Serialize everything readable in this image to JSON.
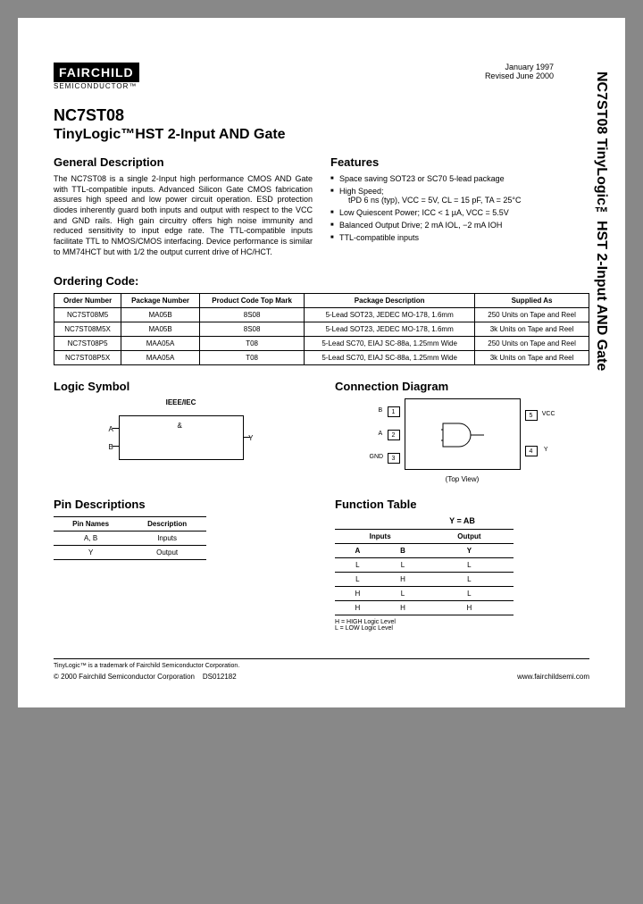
{
  "side_title": "NC7ST08 TinyLogic™HST 2-Input AND Gate",
  "logo": {
    "main": "FAIRCHILD",
    "sub": "SEMICONDUCTOR™"
  },
  "dates": {
    "issued": "January 1997",
    "revised": "Revised June 2000"
  },
  "part_number": "NC7ST08",
  "subtitle": "TinyLogic™HST 2-Input AND Gate",
  "gen_desc_title": "General Description",
  "gen_desc": "The NC7ST08 is a single 2-Input high performance CMOS AND Gate with TTL-compatible inputs. Advanced Silicon Gate CMOS fabrication assures high speed and low power circuit operation. ESD protection diodes inherently guard both inputs and output with respect to the VCC and GND rails. High gain circuitry offers high noise immunity and reduced sensitivity to input edge rate. The TTL-compatible inputs facilitate TTL to NMOS/CMOS interfacing. Device performance is similar to MM74HCT but with 1/2 the output current drive of HC/HCT.",
  "features_title": "Features",
  "features": [
    "Space saving SOT23 or SC70 5-lead package",
    "High Speed;",
    "Low Quiescent Power; ICC < 1 µA, VCC = 5.5V",
    "Balanced Output Drive; 2 mA IOL, −2 mA IOH",
    "TTL-compatible inputs"
  ],
  "feature_sub": "tPD 6 ns (typ), VCC = 5V, CL = 15 pF, TA = 25°C",
  "ordering_title": "Ordering Code:",
  "order_headers": [
    "Order Number",
    "Package Number",
    "Product Code Top Mark",
    "Package Description",
    "Supplied As"
  ],
  "order_rows": [
    [
      "NC7ST08M5",
      "MA05B",
      "8S08",
      "5-Lead SOT23, JEDEC MO-178, 1.6mm",
      "250 Units on Tape and Reel"
    ],
    [
      "NC7ST08M5X",
      "MA05B",
      "8S08",
      "5-Lead SOT23, JEDEC MO-178, 1.6mm",
      "3k Units on Tape and Reel"
    ],
    [
      "NC7ST08P5",
      "MAA05A",
      "T08",
      "5-Lead SC70, EIAJ SC-88a, 1.25mm Wide",
      "250 Units on Tape and Reel"
    ],
    [
      "NC7ST08P5X",
      "MAA05A",
      "T08",
      "5-Lead SC70, EIAJ SC-88a, 1.25mm Wide",
      "3k Units on Tape and Reel"
    ]
  ],
  "logic_title": "Logic Symbol",
  "ieee": "IEEE/IEC",
  "logic_sym": {
    "amp": "&",
    "inA": "A",
    "inB": "B",
    "out": "Y"
  },
  "conn_title": "Connection Diagram",
  "conn": {
    "pins_left": [
      {
        "n": "1",
        "lbl": "B"
      },
      {
        "n": "2",
        "lbl": "A"
      },
      {
        "n": "3",
        "lbl": "GND"
      }
    ],
    "pins_right": [
      {
        "n": "5",
        "lbl": "VCC"
      },
      {
        "n": "4",
        "lbl": "Y"
      }
    ],
    "topview": "(Top View)"
  },
  "pindesc_title": "Pin Descriptions",
  "pin_headers": [
    "Pin Names",
    "Description"
  ],
  "pin_rows": [
    [
      "A, B",
      "Inputs"
    ],
    [
      "Y",
      "Output"
    ]
  ],
  "func_title": "Function Table",
  "func_eq": "Y = AB",
  "func_headers_top": [
    "Inputs",
    "Output"
  ],
  "func_headers": [
    "A",
    "B",
    "Y"
  ],
  "func_rows": [
    [
      "L",
      "L",
      "L"
    ],
    [
      "L",
      "H",
      "L"
    ],
    [
      "H",
      "L",
      "L"
    ],
    [
      "H",
      "H",
      "H"
    ]
  ],
  "legend": "H = HIGH Logic Level\nL = LOW Logic Level",
  "trademark": "TinyLogic™ is a trademark of Fairchild Semiconductor Corporation.",
  "copyright": "© 2000 Fairchild Semiconductor Corporation",
  "docid": "DS012182",
  "url": "www.fairchildsemi.com"
}
